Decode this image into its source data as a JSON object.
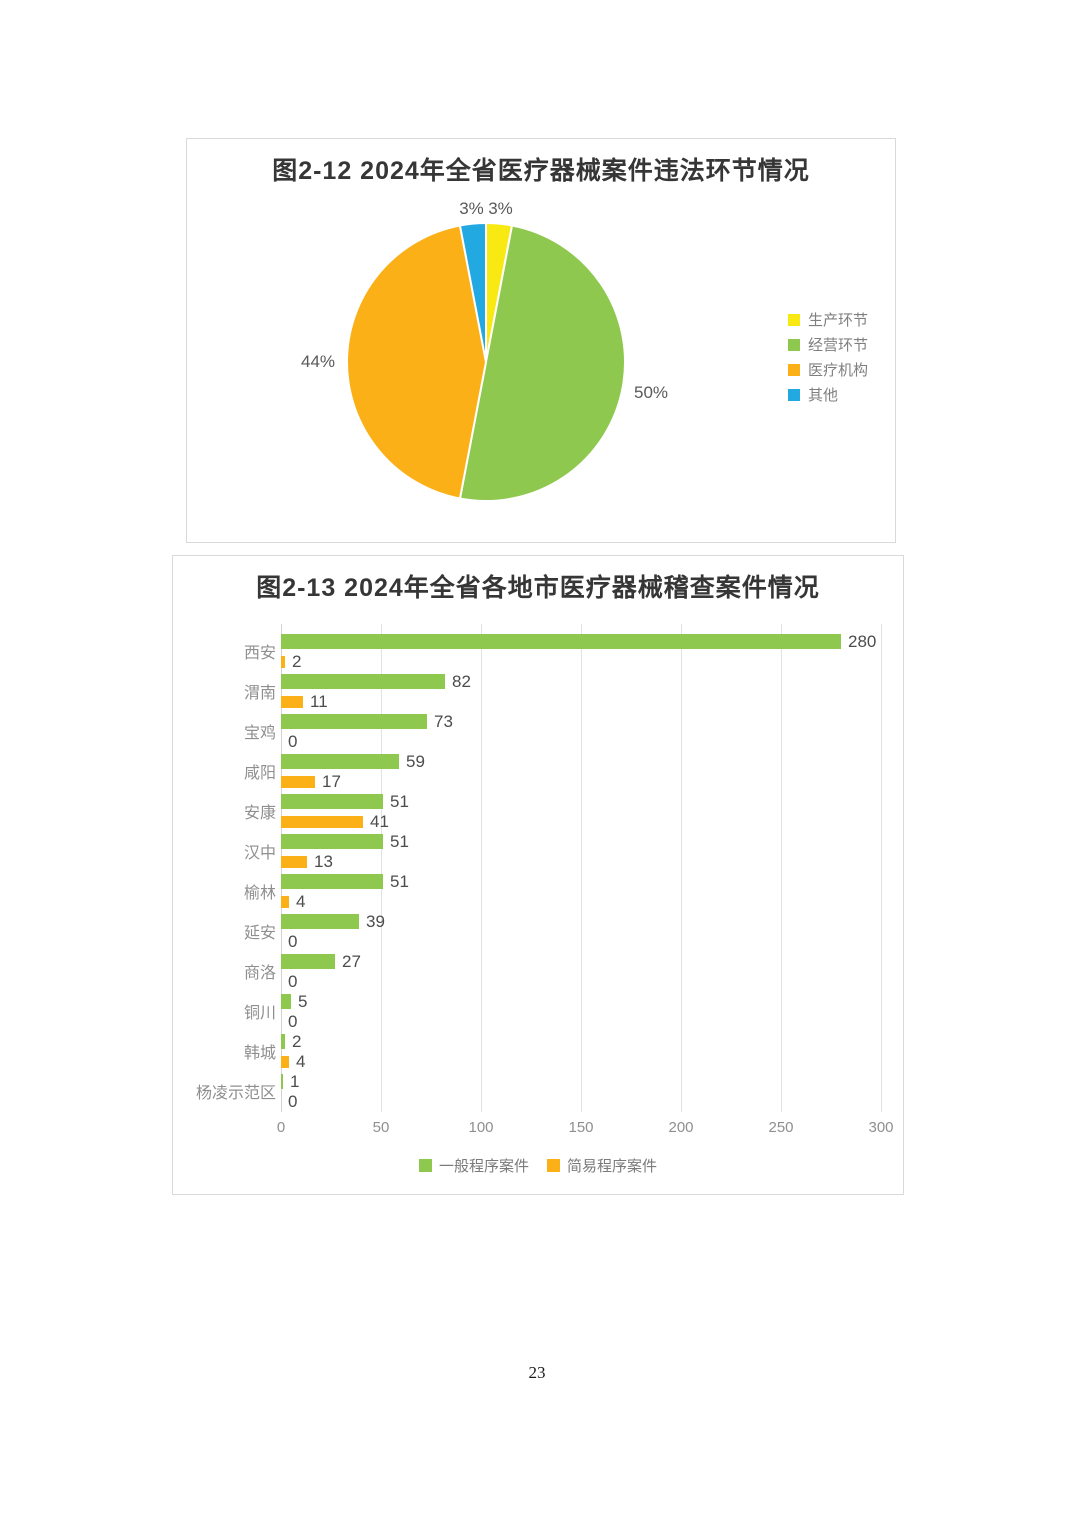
{
  "page": {
    "number": "23"
  },
  "colors": {
    "yellow": "#F8E912",
    "green": "#8FC84F",
    "orange": "#FBB017",
    "blue": "#23A9E1"
  },
  "chart_data": [
    {
      "type": "pie",
      "title": "图2-12 2024年全省医疗器械案件违法环节情况",
      "legend_position": "right",
      "slices": [
        {
          "label": "生产环节",
          "value": 3,
          "pct_label": "3%",
          "color_key": "yellow"
        },
        {
          "label": "经营环节",
          "value": 50,
          "pct_label": "50%",
          "color_key": "green"
        },
        {
          "label": "医疗机构",
          "value": 44,
          "pct_label": "44%",
          "color_key": "orange"
        },
        {
          "label": "其他",
          "value": 3,
          "pct_label": "3%",
          "color_key": "blue"
        }
      ]
    },
    {
      "type": "bar",
      "orientation": "horizontal",
      "title": "图2-13 2024年全省各地市医疗器械稽查案件情况",
      "categories": [
        "西安",
        "渭南",
        "宝鸡",
        "咸阳",
        "安康",
        "汉中",
        "榆林",
        "延安",
        "商洛",
        "铜川",
        "韩城",
        "杨凌示范区"
      ],
      "series": [
        {
          "name": "一般程序案件",
          "color_key": "green",
          "values": [
            280,
            82,
            73,
            59,
            51,
            51,
            51,
            39,
            27,
            5,
            2,
            1
          ]
        },
        {
          "name": "简易程序案件",
          "color_key": "orange",
          "values": [
            2,
            11,
            0,
            17,
            41,
            13,
            4,
            0,
            0,
            0,
            4,
            0
          ]
        }
      ],
      "xlim": [
        0,
        300
      ],
      "xticks": [
        0,
        50,
        100,
        150,
        200,
        250,
        300
      ],
      "grid": true,
      "legend_position": "bottom"
    }
  ]
}
